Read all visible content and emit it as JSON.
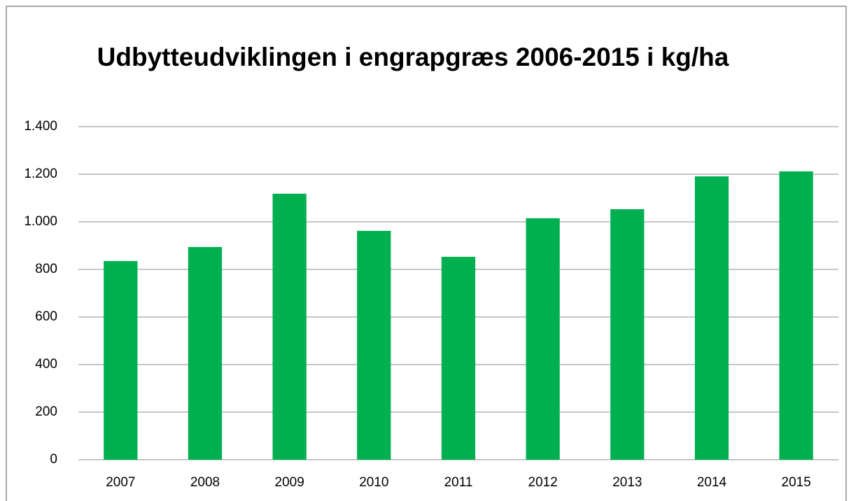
{
  "chart_data": {
    "type": "bar",
    "title": "Udbytteudviklingen i engrapgræs 2006-2015 i kg/ha",
    "categories": [
      "2007",
      "2008",
      "2009",
      "2010",
      "2011",
      "2012",
      "2013",
      "2014",
      "2015"
    ],
    "values": [
      835,
      894,
      1118,
      962,
      853,
      1015,
      1053,
      1191,
      1212
    ],
    "color": "#00b050",
    "ylim": [
      0,
      1400
    ],
    "yticks": [
      0,
      200,
      400,
      600,
      800,
      {
        "value": 1000,
        "label": "1.000"
      },
      {
        "value": 1200,
        "label": "1.200"
      },
      {
        "value": 1400,
        "label": "1.400"
      }
    ],
    "grid": true
  }
}
